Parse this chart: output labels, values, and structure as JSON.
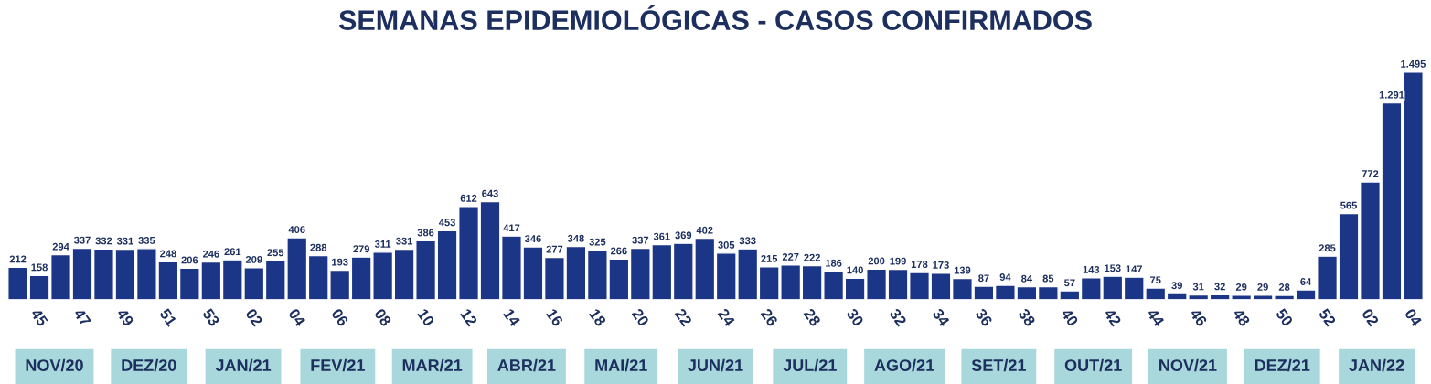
{
  "chart_data": {
    "type": "bar",
    "title": "SEMANAS EPIDEMIOLÓGICAS - CASOS CONFIRMADOS",
    "categories": [
      null,
      "45",
      null,
      "47",
      null,
      "49",
      null,
      "51",
      null,
      "53",
      null,
      "02",
      null,
      "04",
      null,
      "06",
      null,
      "08",
      null,
      "10",
      null,
      "12",
      null,
      "14",
      null,
      "16",
      null,
      "18",
      null,
      "20",
      null,
      "22",
      null,
      "24",
      null,
      "26",
      null,
      "28",
      null,
      "30",
      null,
      "32",
      null,
      "34",
      null,
      "36",
      null,
      "38",
      null,
      "40",
      null,
      "42",
      null,
      "44",
      null,
      "46",
      null,
      "48",
      null,
      "50",
      null,
      "52",
      null,
      "02",
      null,
      "04"
    ],
    "values": [
      212,
      158,
      294,
      337,
      332,
      331,
      335,
      248,
      206,
      246,
      261,
      209,
      255,
      406,
      288,
      193,
      279,
      311,
      331,
      386,
      453,
      612,
      643,
      417,
      346,
      277,
      348,
      325,
      266,
      337,
      361,
      369,
      402,
      305,
      333,
      215,
      227,
      222,
      186,
      140,
      200,
      199,
      178,
      173,
      139,
      87,
      94,
      84,
      85,
      57,
      143,
      153,
      147,
      75,
      39,
      31,
      32,
      29,
      29,
      28,
      64,
      285,
      565,
      772,
      1291,
      1495
    ],
    "value_labels": [
      "212",
      "158",
      "294",
      "337",
      "332",
      "331",
      "335",
      "248",
      "206",
      "246",
      "261",
      "209",
      "255",
      "406",
      "288",
      "193",
      "279",
      "311",
      "331",
      "386",
      "453",
      "612",
      "643",
      "417",
      "346",
      "277",
      "348",
      "325",
      "266",
      "337",
      "361",
      "369",
      "402",
      "305",
      "333",
      "215",
      "227",
      "222",
      "186",
      "140",
      "200",
      "199",
      "178",
      "173",
      "139",
      "87",
      "94",
      "84",
      "85",
      "57",
      "143",
      "153",
      "147",
      "75",
      "39",
      "31",
      "32",
      "29",
      "29",
      "28",
      "64",
      "285",
      "565",
      "772",
      "1.291",
      "1.495"
    ],
    "color": "#1c3687",
    "grid": false,
    "annotations": [
      "NOV/20",
      "DEZ/20",
      "JAN/21",
      "FEV/21",
      "MAR/21",
      "ABR/21",
      "MAI/21",
      "JUN/21",
      "JUL/21",
      "AGO/21",
      "SET/21",
      "OUT/21",
      "NOV/21",
      "DEZ/21",
      "JAN/22"
    ]
  }
}
